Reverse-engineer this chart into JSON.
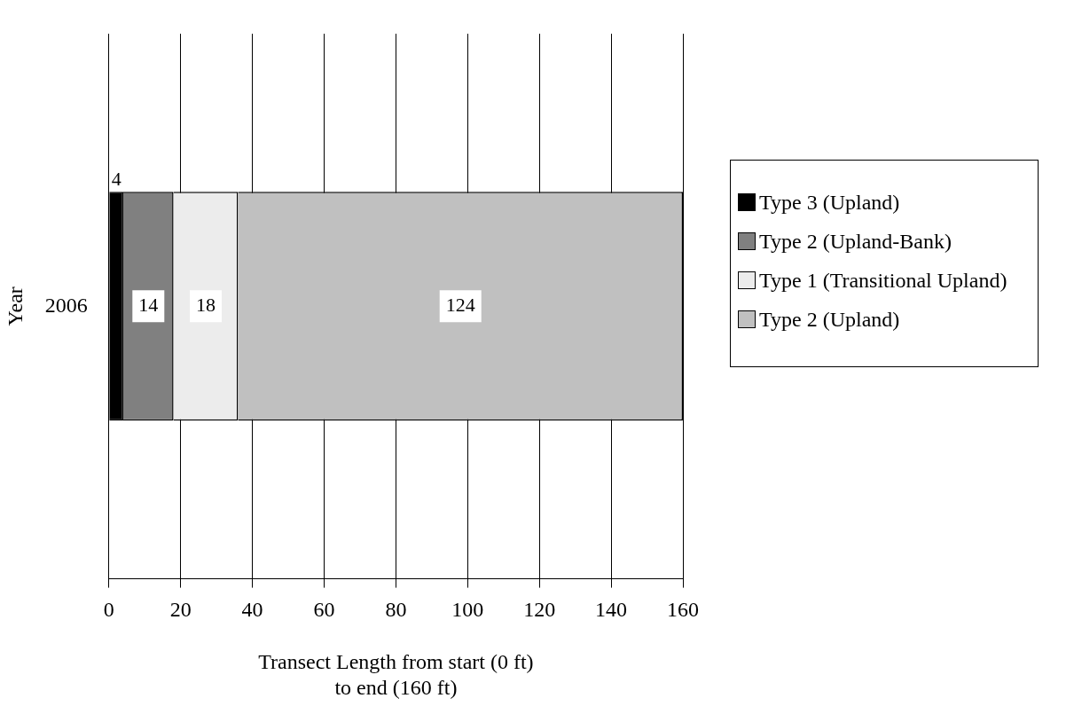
{
  "chart_data": {
    "type": "bar",
    "orientation": "horizontal",
    "stacked": true,
    "categories": [
      "2006"
    ],
    "series": [
      {
        "name": "Type 3 (Upland)",
        "color": "#000000",
        "values": [
          4
        ]
      },
      {
        "name": "Type 2 (Upland-Bank)",
        "color": "#808080",
        "values": [
          14
        ]
      },
      {
        "name": "Type 1 (Transitional Upland)",
        "color": "#ececec",
        "values": [
          18
        ]
      },
      {
        "name": "Type 2 (Upland)",
        "color": "#c0c0c0",
        "values": [
          124
        ]
      }
    ],
    "xlabel": "Transect Length from start (0 ft)\nto end (160 ft)",
    "ylabel": "Year",
    "xlim": [
      0,
      160
    ],
    "xticks": [
      0,
      20,
      40,
      60,
      80,
      100,
      120,
      140,
      160
    ],
    "grid": "x",
    "legend": "right",
    "data_labels": true
  }
}
